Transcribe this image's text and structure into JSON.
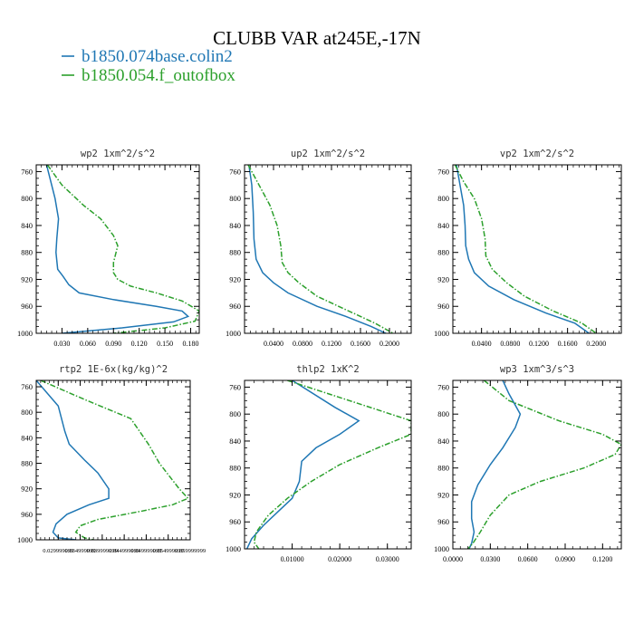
{
  "figure": {
    "title": "CLUBB VAR at245E,-17N",
    "legend": [
      {
        "name": "b1850.074base.colin2",
        "color": "#1f77b4",
        "dash": "solid"
      },
      {
        "name": "b1850.054.f_outofbox",
        "color": "#2ca02c",
        "dash": "dashdot"
      }
    ]
  },
  "chart_data": [
    {
      "type": "line",
      "title": "wp2  1xm^2/s^2",
      "xlim": [
        0,
        0.19
      ],
      "ylim": [
        1000,
        750
      ],
      "xticks": [
        0.03,
        0.06,
        0.09,
        0.12,
        0.15,
        0.18
      ],
      "xtick_labels": [
        "0.030",
        "0.060",
        "0.090",
        "0.120",
        "0.150",
        "0.180"
      ],
      "yticks": [
        760,
        800,
        840,
        880,
        920,
        960,
        1000
      ],
      "series": [
        {
          "name": "b1850.074base.colin2",
          "points": [
            [
              0.012,
              750
            ],
            [
              0.016,
              770
            ],
            [
              0.022,
              800
            ],
            [
              0.026,
              830
            ],
            [
              0.024,
              860
            ],
            [
              0.023,
              880
            ],
            [
              0.025,
              905
            ],
            [
              0.031,
              915
            ],
            [
              0.038,
              928
            ],
            [
              0.05,
              940
            ],
            [
              0.09,
              950
            ],
            [
              0.14,
              960
            ],
            [
              0.17,
              967
            ],
            [
              0.177,
              975
            ],
            [
              0.16,
              983
            ],
            [
              0.1,
              992
            ],
            [
              0.03,
              1000
            ]
          ]
        },
        {
          "name": "b1850.054.f_outofbox",
          "points": [
            [
              0.013,
              750
            ],
            [
              0.03,
              780
            ],
            [
              0.055,
              810
            ],
            [
              0.075,
              830
            ],
            [
              0.09,
              855
            ],
            [
              0.095,
              870
            ],
            [
              0.09,
              895
            ],
            [
              0.09,
              910
            ],
            [
              0.095,
              920
            ],
            [
              0.11,
              930
            ],
            [
              0.14,
              940
            ],
            [
              0.17,
              952
            ],
            [
              0.19,
              967
            ],
            [
              0.185,
              982
            ],
            [
              0.15,
              992
            ],
            [
              0.09,
              1000
            ]
          ]
        }
      ]
    },
    {
      "type": "line",
      "title": "up2  1xm^2/s^2",
      "xlim": [
        0,
        0.23
      ],
      "ylim": [
        1000,
        750
      ],
      "xticks": [
        0.04,
        0.08,
        0.12,
        0.16,
        0.2
      ],
      "xtick_labels": [
        "0.0400",
        "0.0800",
        "0.1200",
        "0.1600",
        "0.2000"
      ],
      "yticks": [
        760,
        800,
        840,
        880,
        920,
        960,
        1000
      ],
      "series": [
        {
          "name": "b1850.074base.colin2",
          "points": [
            [
              0.006,
              750
            ],
            [
              0.01,
              780
            ],
            [
              0.012,
              820
            ],
            [
              0.013,
              860
            ],
            [
              0.016,
              890
            ],
            [
              0.025,
              910
            ],
            [
              0.04,
              925
            ],
            [
              0.06,
              940
            ],
            [
              0.1,
              960
            ],
            [
              0.14,
              975
            ],
            [
              0.175,
              990
            ],
            [
              0.195,
              1000
            ]
          ]
        },
        {
          "name": "b1850.054.f_outofbox",
          "points": [
            [
              0.005,
              750
            ],
            [
              0.02,
              780
            ],
            [
              0.035,
              810
            ],
            [
              0.045,
              840
            ],
            [
              0.05,
              870
            ],
            [
              0.052,
              895
            ],
            [
              0.06,
              910
            ],
            [
              0.075,
              925
            ],
            [
              0.1,
              945
            ],
            [
              0.14,
              965
            ],
            [
              0.18,
              985
            ],
            [
              0.205,
              1000
            ]
          ]
        }
      ]
    },
    {
      "type": "line",
      "title": "vp2  1xm^2/s^2",
      "xlim": [
        0,
        0.235
      ],
      "ylim": [
        1000,
        750
      ],
      "xticks": [
        0.04,
        0.08,
        0.12,
        0.16,
        0.2
      ],
      "xtick_labels": [
        "0.0400",
        "0.0800",
        "0.1200",
        "0.1600",
        "0.2000"
      ],
      "yticks": [
        760,
        800,
        840,
        880,
        920,
        960,
        1000
      ],
      "series": [
        {
          "name": "b1850.074base.colin2",
          "points": [
            [
              0.005,
              750
            ],
            [
              0.01,
              780
            ],
            [
              0.015,
              810
            ],
            [
              0.017,
              840
            ],
            [
              0.018,
              870
            ],
            [
              0.022,
              890
            ],
            [
              0.03,
              910
            ],
            [
              0.05,
              930
            ],
            [
              0.085,
              950
            ],
            [
              0.13,
              970
            ],
            [
              0.17,
              985
            ],
            [
              0.19,
              1000
            ]
          ]
        },
        {
          "name": "b1850.054.f_outofbox",
          "points": [
            [
              0.003,
              750
            ],
            [
              0.015,
              775
            ],
            [
              0.03,
              800
            ],
            [
              0.04,
              830
            ],
            [
              0.045,
              860
            ],
            [
              0.046,
              885
            ],
            [
              0.055,
              905
            ],
            [
              0.075,
              925
            ],
            [
              0.1,
              945
            ],
            [
              0.14,
              967
            ],
            [
              0.18,
              985
            ],
            [
              0.2,
              1000
            ]
          ]
        }
      ]
    },
    {
      "type": "line",
      "title": "rtp2  1E-6x(kg/kg)^2",
      "xlim": [
        0.025,
        0.06
      ],
      "ylim": [
        1000,
        750
      ],
      "xticks": [
        0.03,
        0.035,
        0.04,
        0.045,
        0.05,
        0.055,
        0.06
      ],
      "xtick_labels": [
        "0.029999999",
        "0.034999999",
        "0.039999999",
        "0.044999999",
        "0.049999999",
        "0.054999999",
        "0.059999999"
      ],
      "yticks": [
        760,
        800,
        840,
        880,
        920,
        960,
        1000
      ],
      "series": [
        {
          "name": "b1850.074base.colin2",
          "points": [
            [
              0.025,
              750
            ],
            [
              0.03,
              790
            ],
            [
              0.0315,
              830
            ],
            [
              0.0325,
              850
            ],
            [
              0.036,
              875
            ],
            [
              0.039,
              895
            ],
            [
              0.0415,
              920
            ],
            [
              0.0415,
              935
            ],
            [
              0.037,
              945
            ],
            [
              0.032,
              960
            ],
            [
              0.0295,
              975
            ],
            [
              0.0288,
              988
            ],
            [
              0.03,
              997
            ],
            [
              0.034,
              1000
            ]
          ]
        },
        {
          "name": "b1850.054.f_outofbox",
          "points": [
            [
              0.026,
              750
            ],
            [
              0.036,
              780
            ],
            [
              0.0465,
              810
            ],
            [
              0.0505,
              850
            ],
            [
              0.053,
              880
            ],
            [
              0.0575,
              920
            ],
            [
              0.0595,
              935
            ],
            [
              0.056,
              945
            ],
            [
              0.049,
              955
            ],
            [
              0.039,
              968
            ],
            [
              0.035,
              978
            ],
            [
              0.034,
              988
            ],
            [
              0.036,
              997
            ],
            [
              0.038,
              1000
            ]
          ]
        }
      ]
    },
    {
      "type": "line",
      "title": "thlp2  1xK^2",
      "xlim": [
        0,
        0.035
      ],
      "ylim": [
        1000,
        750
      ],
      "xticks": [
        0.01,
        0.02,
        0.03
      ],
      "xtick_labels": [
        "0.01000",
        "0.02000",
        "0.03000"
      ],
      "yticks": [
        760,
        800,
        840,
        880,
        920,
        960,
        1000
      ],
      "series": [
        {
          "name": "b1850.074base.colin2",
          "points": [
            [
              0.01,
              750
            ],
            [
              0.019,
              790
            ],
            [
              0.024,
              810
            ],
            [
              0.02,
              830
            ],
            [
              0.015,
              850
            ],
            [
              0.012,
              870
            ],
            [
              0.0115,
              900
            ],
            [
              0.01,
              925
            ],
            [
              0.007,
              945
            ],
            [
              0.004,
              965
            ],
            [
              0.0015,
              985
            ],
            [
              0.0005,
              1000
            ]
          ]
        },
        {
          "name": "b1850.054.f_outofbox",
          "points": [
            [
              0.009,
              750
            ],
            [
              0.022,
              780
            ],
            [
              0.035,
              810
            ],
            [
              0.035,
              830
            ],
            [
              0.028,
              850
            ],
            [
              0.02,
              875
            ],
            [
              0.014,
              900
            ],
            [
              0.009,
              925
            ],
            [
              0.005,
              950
            ],
            [
              0.0025,
              975
            ],
            [
              0.002,
              990
            ],
            [
              0.003,
              1000
            ]
          ]
        }
      ]
    },
    {
      "type": "line",
      "title": "wp3  1xm^3/s^3",
      "xlim": [
        0,
        0.135
      ],
      "ylim": [
        1000,
        750
      ],
      "xticks": [
        0,
        0.03,
        0.06,
        0.09,
        0.12
      ],
      "xtick_labels": [
        "0.0000",
        "0.0300",
        "0.0600",
        "0.0900",
        "0.1200"
      ],
      "yticks": [
        760,
        800,
        840,
        880,
        920,
        960,
        1000
      ],
      "series": [
        {
          "name": "b1850.074base.colin2",
          "points": [
            [
              0.04,
              750
            ],
            [
              0.045,
              770
            ],
            [
              0.054,
              800
            ],
            [
              0.05,
              820
            ],
            [
              0.04,
              850
            ],
            [
              0.03,
              875
            ],
            [
              0.02,
              905
            ],
            [
              0.015,
              930
            ],
            [
              0.015,
              955
            ],
            [
              0.017,
              975
            ],
            [
              0.015,
              992
            ],
            [
              0.013,
              1000
            ]
          ]
        },
        {
          "name": "b1850.054.f_outofbox",
          "points": [
            [
              0.025,
              750
            ],
            [
              0.045,
              780
            ],
            [
              0.085,
              810
            ],
            [
              0.12,
              830
            ],
            [
              0.135,
              845
            ],
            [
              0.13,
              860
            ],
            [
              0.105,
              880
            ],
            [
              0.07,
              900
            ],
            [
              0.045,
              920
            ],
            [
              0.03,
              950
            ],
            [
              0.022,
              975
            ],
            [
              0.016,
              992
            ],
            [
              0.012,
              1000
            ]
          ]
        }
      ]
    }
  ]
}
